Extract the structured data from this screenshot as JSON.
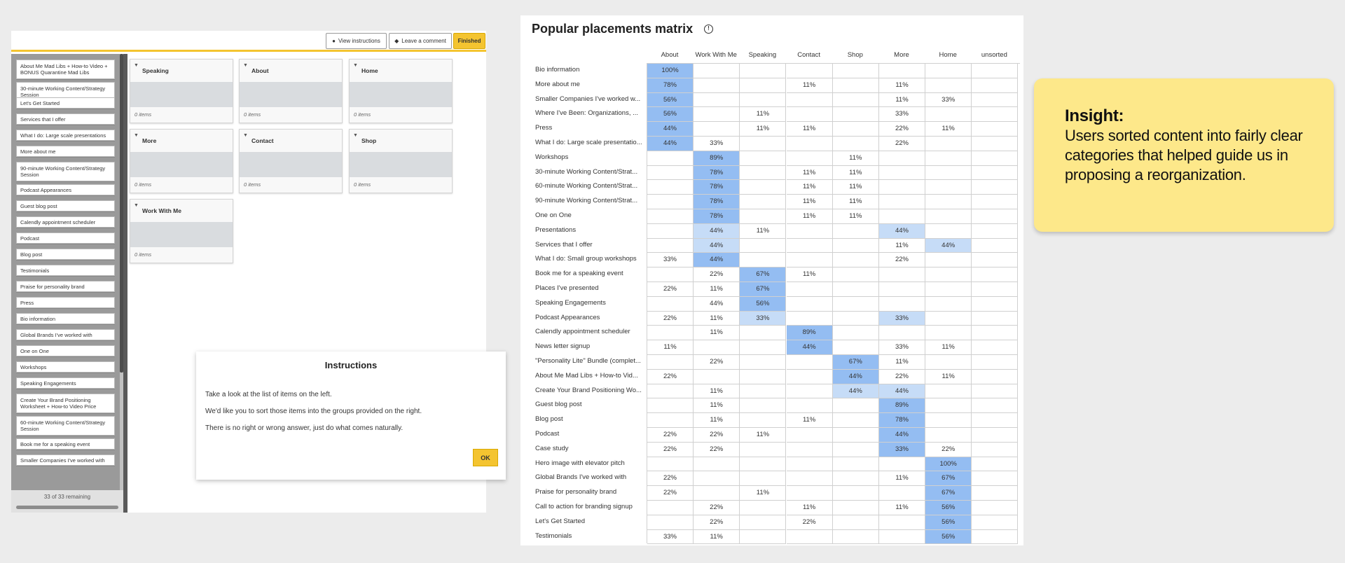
{
  "card_sort": {
    "toolbar": {
      "view_instructions": "View instructions",
      "leave_comment": "Leave a comment",
      "finished": "Finished"
    },
    "cards": [
      "About Me Mad Libs + How-to Video + BONUS Quarantine Mad Libs",
      "30-minute Working Content/Strategy Session",
      "Let's Get Started",
      "Services that I offer",
      "What I do: Large scale presentations",
      "More about me",
      "90-minute Working Content/Strategy Session",
      "Podcast Appearances",
      "Guest blog post",
      "Calendly appointment scheduler",
      "Podcast",
      "Blog post",
      "Testimonials",
      "Praise for personality brand",
      "Press",
      "Bio information",
      "Global Brands I've worked with",
      "One on One",
      "Workshops",
      "Speaking Engagements",
      "Create Your Brand Positioning Worksheet + How-to Video Price",
      "60-minute Working Content/Strategy Session",
      "Book me for a speaking event",
      "Smaller Companies I've worked with"
    ],
    "remaining": "33 of 33 remaining",
    "groups": [
      {
        "name": "Speaking",
        "count": "0 items"
      },
      {
        "name": "About",
        "count": "0 items"
      },
      {
        "name": "Home",
        "count": "0 items"
      },
      {
        "name": "More",
        "count": "0 items"
      },
      {
        "name": "Contact",
        "count": "0 items"
      },
      {
        "name": "Shop",
        "count": "0 items"
      },
      {
        "name": "Work With Me",
        "count": "0 items"
      }
    ],
    "instructions": {
      "title": "Instructions",
      "lines": [
        "Take a look at the list of items on the left.",
        "We'd like you to sort those items into the groups provided on the right.",
        "There is no right or wrong answer, just do what comes naturally."
      ],
      "ok": "OK"
    }
  },
  "matrix": {
    "title": "Popular placements matrix",
    "info_icon": "info-circle-icon",
    "columns": [
      "About",
      "Work With Me",
      "Speaking",
      "Contact",
      "Shop",
      "More",
      "Home",
      "unsorted"
    ],
    "highlight_colors": {
      "strong": "#94bdf2",
      "light": "#c6dcf7"
    },
    "rows": [
      {
        "label": "Bio information",
        "cells": [
          "100%",
          "",
          "",
          "",
          "",
          "",
          "",
          ""
        ],
        "hl": [
          "s",
          "",
          "",
          "",
          "",
          "",
          "",
          ""
        ]
      },
      {
        "label": "More about me",
        "cells": [
          "78%",
          "",
          "",
          "11%",
          "",
          "11%",
          "",
          ""
        ],
        "hl": [
          "s",
          "",
          "",
          "",
          "",
          "",
          "",
          ""
        ]
      },
      {
        "label": "Smaller Companies I've worked w...",
        "cells": [
          "56%",
          "",
          "",
          "",
          "",
          "11%",
          "33%",
          ""
        ],
        "hl": [
          "s",
          "",
          "",
          "",
          "",
          "",
          "",
          ""
        ]
      },
      {
        "label": "Where I've Been: Organizations, ...",
        "cells": [
          "56%",
          "",
          "11%",
          "",
          "",
          "33%",
          "",
          ""
        ],
        "hl": [
          "s",
          "",
          "",
          "",
          "",
          "",
          "",
          ""
        ]
      },
      {
        "label": "Press",
        "cells": [
          "44%",
          "",
          "11%",
          "11%",
          "",
          "22%",
          "11%",
          ""
        ],
        "hl": [
          "s",
          "",
          "",
          "",
          "",
          "",
          "",
          ""
        ]
      },
      {
        "label": "What I do: Large scale presentatio...",
        "cells": [
          "44%",
          "33%",
          "",
          "",
          "",
          "22%",
          "",
          ""
        ],
        "hl": [
          "s",
          "",
          "",
          "",
          "",
          "",
          "",
          ""
        ]
      },
      {
        "label": "Workshops",
        "cells": [
          "",
          "89%",
          "",
          "",
          "11%",
          "",
          "",
          ""
        ],
        "hl": [
          "",
          "s",
          "",
          "",
          "",
          "",
          "",
          ""
        ]
      },
      {
        "label": "30-minute Working Content/Strat...",
        "cells": [
          "",
          "78%",
          "",
          "11%",
          "11%",
          "",
          "",
          ""
        ],
        "hl": [
          "",
          "s",
          "",
          "",
          "",
          "",
          "",
          ""
        ]
      },
      {
        "label": "60-minute Working Content/Strat...",
        "cells": [
          "",
          "78%",
          "",
          "11%",
          "11%",
          "",
          "",
          ""
        ],
        "hl": [
          "",
          "s",
          "",
          "",
          "",
          "",
          "",
          ""
        ]
      },
      {
        "label": "90-minute Working Content/Strat...",
        "cells": [
          "",
          "78%",
          "",
          "11%",
          "11%",
          "",
          "",
          ""
        ],
        "hl": [
          "",
          "s",
          "",
          "",
          "",
          "",
          "",
          ""
        ]
      },
      {
        "label": "One on One",
        "cells": [
          "",
          "78%",
          "",
          "11%",
          "11%",
          "",
          "",
          ""
        ],
        "hl": [
          "",
          "s",
          "",
          "",
          "",
          "",
          "",
          ""
        ]
      },
      {
        "label": "Presentations",
        "cells": [
          "",
          "44%",
          "11%",
          "",
          "",
          "44%",
          "",
          ""
        ],
        "hl": [
          "",
          "l",
          "",
          "",
          "",
          "l",
          "",
          ""
        ]
      },
      {
        "label": "Services that I offer",
        "cells": [
          "",
          "44%",
          "",
          "",
          "",
          "11%",
          "44%",
          ""
        ],
        "hl": [
          "",
          "l",
          "",
          "",
          "",
          "",
          "l",
          ""
        ]
      },
      {
        "label": "What I do: Small group workshops",
        "cells": [
          "33%",
          "44%",
          "",
          "",
          "",
          "22%",
          "",
          ""
        ],
        "hl": [
          "",
          "s",
          "",
          "",
          "",
          "",
          "",
          ""
        ]
      },
      {
        "label": "Book me for a speaking event",
        "cells": [
          "",
          "22%",
          "67%",
          "11%",
          "",
          "",
          "",
          ""
        ],
        "hl": [
          "",
          "",
          "s",
          "",
          "",
          "",
          "",
          ""
        ]
      },
      {
        "label": "Places I've presented",
        "cells": [
          "22%",
          "11%",
          "67%",
          "",
          "",
          "",
          "",
          ""
        ],
        "hl": [
          "",
          "",
          "s",
          "",
          "",
          "",
          "",
          ""
        ]
      },
      {
        "label": "Speaking Engagements",
        "cells": [
          "",
          "44%",
          "56%",
          "",
          "",
          "",
          "",
          ""
        ],
        "hl": [
          "",
          "",
          "s",
          "",
          "",
          "",
          "",
          ""
        ]
      },
      {
        "label": "Podcast Appearances",
        "cells": [
          "22%",
          "11%",
          "33%",
          "",
          "",
          "33%",
          "",
          ""
        ],
        "hl": [
          "",
          "",
          "l",
          "",
          "",
          "l",
          "",
          ""
        ]
      },
      {
        "label": "Calendly appointment scheduler",
        "cells": [
          "",
          "11%",
          "",
          "89%",
          "",
          "",
          "",
          ""
        ],
        "hl": [
          "",
          "",
          "",
          "s",
          "",
          "",
          "",
          ""
        ]
      },
      {
        "label": "News letter signup",
        "cells": [
          "11%",
          "",
          "",
          "44%",
          "",
          "33%",
          "11%",
          ""
        ],
        "hl": [
          "",
          "",
          "",
          "s",
          "",
          "",
          "",
          ""
        ]
      },
      {
        "label": "\"Personality Lite\" Bundle (complet...",
        "cells": [
          "",
          "22%",
          "",
          "",
          "67%",
          "11%",
          "",
          ""
        ],
        "hl": [
          "",
          "",
          "",
          "",
          "s",
          "",
          "",
          ""
        ]
      },
      {
        "label": "About Me Mad Libs + How-to Vid...",
        "cells": [
          "22%",
          "",
          "",
          "",
          "44%",
          "22%",
          "11%",
          ""
        ],
        "hl": [
          "",
          "",
          "",
          "",
          "s",
          "",
          "",
          ""
        ]
      },
      {
        "label": "Create Your Brand Positioning Wo...",
        "cells": [
          "",
          "11%",
          "",
          "",
          "44%",
          "44%",
          "",
          ""
        ],
        "hl": [
          "",
          "",
          "",
          "",
          "l",
          "l",
          "",
          ""
        ]
      },
      {
        "label": "Guest blog post",
        "cells": [
          "",
          "11%",
          "",
          "",
          "",
          "89%",
          "",
          ""
        ],
        "hl": [
          "",
          "",
          "",
          "",
          "",
          "s",
          "",
          ""
        ]
      },
      {
        "label": "Blog post",
        "cells": [
          "",
          "11%",
          "",
          "11%",
          "",
          "78%",
          "",
          ""
        ],
        "hl": [
          "",
          "",
          "",
          "",
          "",
          "s",
          "",
          ""
        ]
      },
      {
        "label": "Podcast",
        "cells": [
          "22%",
          "22%",
          "11%",
          "",
          "",
          "44%",
          "",
          ""
        ],
        "hl": [
          "",
          "",
          "",
          "",
          "",
          "s",
          "",
          ""
        ]
      },
      {
        "label": "Case study",
        "cells": [
          "22%",
          "22%",
          "",
          "",
          "",
          "33%",
          "22%",
          ""
        ],
        "hl": [
          "",
          "",
          "",
          "",
          "",
          "s",
          "",
          ""
        ]
      },
      {
        "label": "Hero image with elevator pitch",
        "cells": [
          "",
          "",
          "",
          "",
          "",
          "",
          "100%",
          ""
        ],
        "hl": [
          "",
          "",
          "",
          "",
          "",
          "",
          "s",
          ""
        ]
      },
      {
        "label": "Global Brands I've worked with",
        "cells": [
          "22%",
          "",
          "",
          "",
          "",
          "11%",
          "67%",
          ""
        ],
        "hl": [
          "",
          "",
          "",
          "",
          "",
          "",
          "s",
          ""
        ]
      },
      {
        "label": "Praise for personality brand",
        "cells": [
          "22%",
          "",
          "11%",
          "",
          "",
          "",
          "67%",
          ""
        ],
        "hl": [
          "",
          "",
          "",
          "",
          "",
          "",
          "s",
          ""
        ]
      },
      {
        "label": "Call to action for branding signup",
        "cells": [
          "",
          "22%",
          "",
          "11%",
          "",
          "11%",
          "56%",
          ""
        ],
        "hl": [
          "",
          "",
          "",
          "",
          "",
          "",
          "s",
          ""
        ]
      },
      {
        "label": "Let's Get Started",
        "cells": [
          "",
          "22%",
          "",
          "22%",
          "",
          "",
          "56%",
          ""
        ],
        "hl": [
          "",
          "",
          "",
          "",
          "",
          "",
          "s",
          ""
        ]
      },
      {
        "label": "Testimonials",
        "cells": [
          "33%",
          "11%",
          "",
          "",
          "",
          "",
          "56%",
          ""
        ],
        "hl": [
          "",
          "",
          "",
          "",
          "",
          "",
          "s",
          ""
        ]
      }
    ]
  },
  "insight": {
    "heading": "Insight:",
    "body": "Users sorted content into fairly clear categories that helped guide us in proposing a reorganization."
  }
}
